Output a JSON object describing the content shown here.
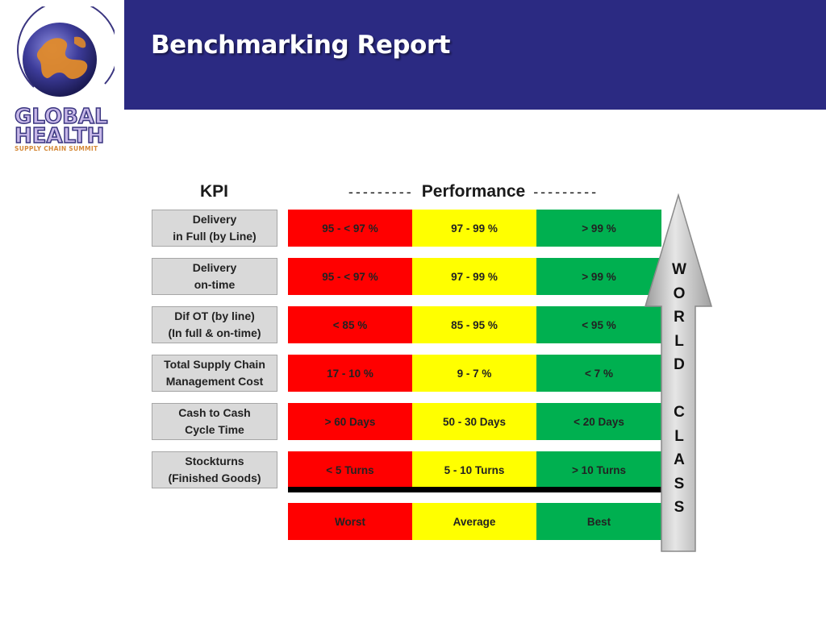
{
  "title": "Benchmarking Report",
  "logo": {
    "line1": "GLOBAL",
    "line2": "HEALTH",
    "subtitle": "SUPPLY CHAIN SUMMIT"
  },
  "table": {
    "kpi_header": "KPI",
    "performance_header": "Performance",
    "rows": [
      {
        "kpi": "Delivery\nin Full (by Line)",
        "worst": "95 - < 97 %",
        "average": "97 - 99 %",
        "best": "> 99 %"
      },
      {
        "kpi": "Delivery\non-time",
        "worst": "95 - < 97 %",
        "average": "97 - 99 %",
        "best": "> 99 %"
      },
      {
        "kpi": "Dif OT (by line)\n(In full & on-time)",
        "worst": "< 85 %",
        "average": "85 - 95 %",
        "best": "< 95 %"
      },
      {
        "kpi": "Total Supply Chain\nManagement Cost",
        "worst": "17 - 10 %",
        "average": "9 - 7 %",
        "best": "< 7 %"
      },
      {
        "kpi": "Cash to Cash\nCycle Time",
        "worst": "> 60 Days",
        "average": "50 - 30 Days",
        "best": "< 20 Days"
      },
      {
        "kpi": "Stockturns\n(Finished Goods)",
        "worst": "< 5 Turns",
        "average": "5 - 10 Turns",
        "best": "> 10 Turns"
      }
    ],
    "legend": {
      "worst": "Worst",
      "average": "Average",
      "best": "Best"
    }
  },
  "arrow_letters": [
    "W",
    "O",
    "R",
    "L",
    "D",
    "",
    "C",
    "L",
    "A",
    "S",
    "S"
  ],
  "colors": {
    "banner": "#2b2a82",
    "worst": "#ff0000",
    "average": "#ffff00",
    "best": "#00b050",
    "kpi_box": "#d9d9d9"
  }
}
